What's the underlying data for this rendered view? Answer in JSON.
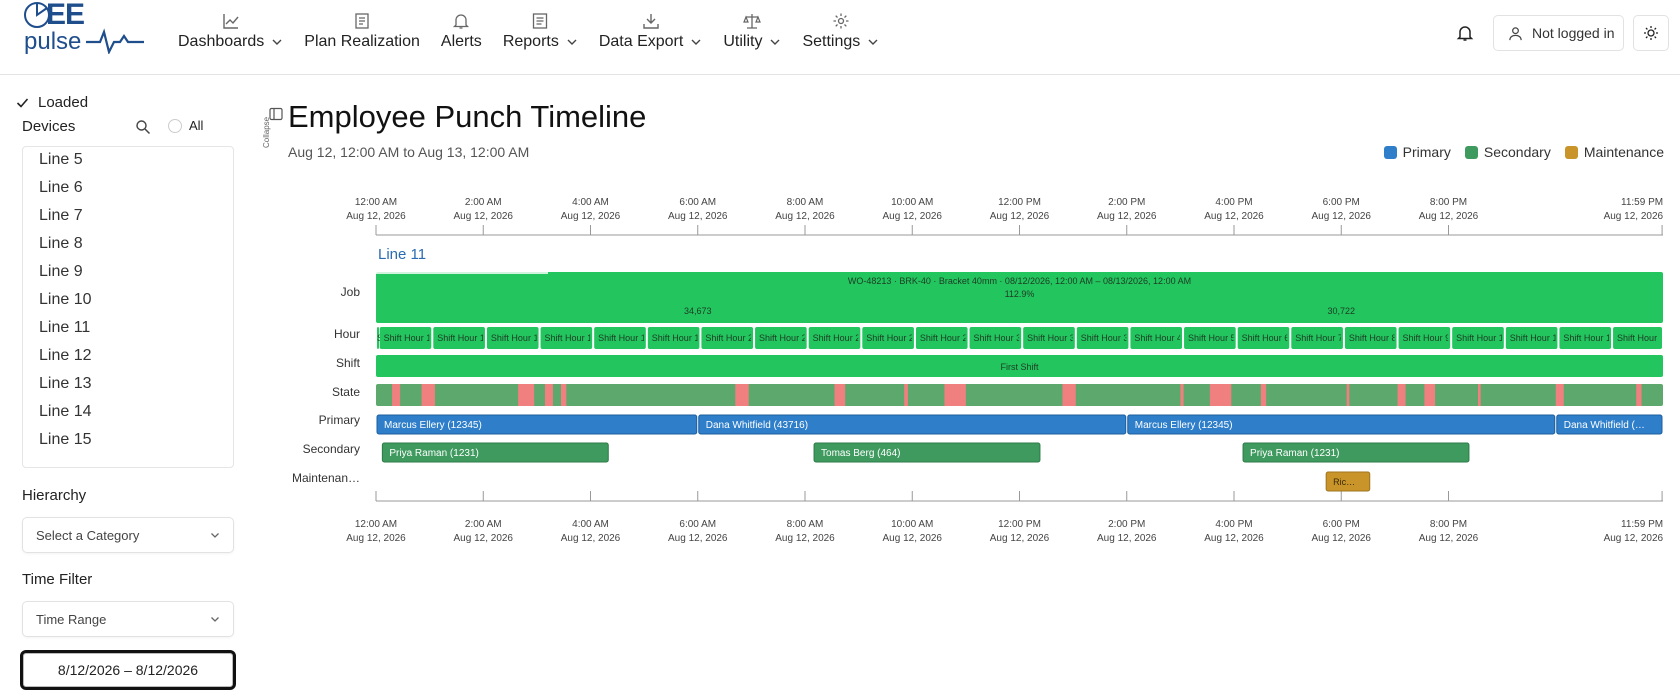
{
  "header": {
    "logo_top": "EE",
    "logo_bottom": "pulse",
    "nav": [
      {
        "label": "Dashboards",
        "icon": "chart-line-icon",
        "dropdown": true
      },
      {
        "label": "Plan Realization",
        "icon": "document-icon",
        "dropdown": false
      },
      {
        "label": "Alerts",
        "icon": "bell-icon",
        "dropdown": false
      },
      {
        "label": "Reports",
        "icon": "report-icon",
        "dropdown": true
      },
      {
        "label": "Data Export",
        "icon": "download-icon",
        "dropdown": true
      },
      {
        "label": "Utility",
        "icon": "scale-icon",
        "dropdown": true
      },
      {
        "label": "Settings",
        "icon": "gear-icon",
        "dropdown": true
      }
    ],
    "login_label": "Not logged in"
  },
  "sidebar": {
    "loaded_label": "Loaded",
    "devices_label": "Devices",
    "all_label": "All",
    "devices": [
      "Line 5",
      "Line 6",
      "Line 7",
      "Line 8",
      "Line 9",
      "Line 10",
      "Line 11",
      "Line 12",
      "Line 13",
      "Line 14",
      "Line 15"
    ],
    "hierarchy_label": "Hierarchy",
    "hierarchy_placeholder": "Select a Category",
    "time_filter_label": "Time Filter",
    "time_filter_value": "Time Range",
    "date_range": "8/12/2026 – 8/12/2026"
  },
  "main": {
    "collapse_label": "Collapse",
    "title": "Employee Punch Timeline",
    "range": "Aug 12, 12:00 AM to Aug 13, 12:00 AM",
    "legend": [
      {
        "label": "Primary",
        "color": "#2e7ec9"
      },
      {
        "label": "Secondary",
        "color": "#3f9a5f"
      },
      {
        "label": "Maintenance",
        "color": "#c9952a"
      }
    ]
  },
  "chart_data": {
    "type": "timeline",
    "device": "Line 11",
    "x_range_hours": [
      0,
      24
    ],
    "axis_ticks": [
      {
        "hour": 0,
        "time": "12:00 AM",
        "date": "Aug 12, 2026"
      },
      {
        "hour": 2,
        "time": "2:00 AM",
        "date": "Aug 12, 2026"
      },
      {
        "hour": 4,
        "time": "4:00 AM",
        "date": "Aug 12, 2026"
      },
      {
        "hour": 6,
        "time": "6:00 AM",
        "date": "Aug 12, 2026"
      },
      {
        "hour": 8,
        "time": "8:00 AM",
        "date": "Aug 12, 2026"
      },
      {
        "hour": 10,
        "time": "10:00 AM",
        "date": "Aug 12, 2026"
      },
      {
        "hour": 12,
        "time": "12:00 PM",
        "date": "Aug 12, 2026"
      },
      {
        "hour": 14,
        "time": "2:00 PM",
        "date": "Aug 12, 2026"
      },
      {
        "hour": 16,
        "time": "4:00 PM",
        "date": "Aug 12, 2026"
      },
      {
        "hour": 18,
        "time": "6:00 PM",
        "date": "Aug 12, 2026"
      },
      {
        "hour": 20,
        "time": "8:00 PM",
        "date": "Aug 12, 2026"
      },
      {
        "hour": 23.983,
        "time": "11:59 PM",
        "date": "Aug 12, 2026"
      }
    ],
    "rows": [
      "Job",
      "Hour",
      "Shift",
      "State",
      "Primary",
      "Secondary",
      "Maintenan…"
    ],
    "job": {
      "label": "WO-48213 · BRK-40 · Bracket 40mm · 08/12/2026, 12:00 AM – 08/13/2026, 12:00 AM",
      "percent": "112.9%",
      "start": 0,
      "end": 24,
      "counts": [
        {
          "hour": 6,
          "value": "34,673"
        },
        {
          "hour": 18,
          "value": "30,722"
        }
      ]
    },
    "hour_blocks": [
      {
        "start": 0.0,
        "end": 0.05,
        "label": "S"
      },
      {
        "start": 0.05,
        "end": 1.05,
        "label": "Shift Hour 1"
      },
      {
        "start": 1.05,
        "end": 2.05,
        "label": "Shift Hour 1"
      },
      {
        "start": 2.05,
        "end": 3.05,
        "label": "Shift Hour 1"
      },
      {
        "start": 3.05,
        "end": 4.05,
        "label": "Shift Hour 1"
      },
      {
        "start": 4.05,
        "end": 5.05,
        "label": "Shift Hour 1"
      },
      {
        "start": 5.05,
        "end": 6.05,
        "label": "Shift Hour 1"
      },
      {
        "start": 6.05,
        "end": 7.05,
        "label": "Shift Hour 2"
      },
      {
        "start": 7.05,
        "end": 8.05,
        "label": "Shift Hour 2"
      },
      {
        "start": 8.05,
        "end": 9.05,
        "label": "Shift Hour 2"
      },
      {
        "start": 9.05,
        "end": 10.05,
        "label": "Shift Hour 2"
      },
      {
        "start": 10.05,
        "end": 11.05,
        "label": "Shift Hour 2"
      },
      {
        "start": 11.05,
        "end": 12.05,
        "label": "Shift Hour 3"
      },
      {
        "start": 12.05,
        "end": 13.05,
        "label": "Shift Hour 3"
      },
      {
        "start": 13.05,
        "end": 14.05,
        "label": "Shift Hour 3"
      },
      {
        "start": 14.05,
        "end": 15.05,
        "label": "Shift Hour 4"
      },
      {
        "start": 15.05,
        "end": 16.05,
        "label": "Shift Hour 5"
      },
      {
        "start": 16.05,
        "end": 17.05,
        "label": "Shift Hour 6"
      },
      {
        "start": 17.05,
        "end": 18.05,
        "label": "Shift Hour 7"
      },
      {
        "start": 18.05,
        "end": 19.05,
        "label": "Shift Hour 8"
      },
      {
        "start": 19.05,
        "end": 20.05,
        "label": "Shift Hour 9"
      },
      {
        "start": 20.05,
        "end": 21.05,
        "label": "Shift Hour 1"
      },
      {
        "start": 21.05,
        "end": 22.05,
        "label": "Shift Hour 1"
      },
      {
        "start": 22.05,
        "end": 23.05,
        "label": "Shift Hour 1"
      },
      {
        "start": 23.05,
        "end": 24.0,
        "label": "Shift Hour 1"
      }
    ],
    "shift": {
      "label": "First Shift",
      "start": 0,
      "end": 24
    },
    "state_faults": [
      [
        0.3,
        0.45
      ],
      [
        0.85,
        1.1
      ],
      [
        2.65,
        2.95
      ],
      [
        3.15,
        3.3
      ],
      [
        3.45,
        3.55
      ],
      [
        6.7,
        6.95
      ],
      [
        8.55,
        8.75
      ],
      [
        9.85,
        9.92
      ],
      [
        10.6,
        11.0
      ],
      [
        12.8,
        13.05
      ],
      [
        15.0,
        15.06
      ],
      [
        15.55,
        15.95
      ],
      [
        16.5,
        16.6
      ],
      [
        18.1,
        18.15
      ],
      [
        19.05,
        19.2
      ],
      [
        19.55,
        19.75
      ],
      [
        20.55,
        20.6
      ],
      [
        22.0,
        22.15
      ],
      [
        23.5,
        23.6
      ]
    ],
    "primary": [
      {
        "start": 0.0,
        "end": 6.0,
        "label": "Marcus Ellery (12345)"
      },
      {
        "start": 6.0,
        "end": 14.0,
        "label": "Dana Whitfield (43716)"
      },
      {
        "start": 14.0,
        "end": 22.0,
        "label": "Marcus Ellery (12345)"
      },
      {
        "start": 22.0,
        "end": 24.0,
        "label": "Dana Whitfield (…"
      }
    ],
    "secondary": [
      {
        "start": 0.1,
        "end": 4.35,
        "label": "Priya Raman (1231)"
      },
      {
        "start": 8.15,
        "end": 12.4,
        "label": "Tomas Berg (464)"
      },
      {
        "start": 16.15,
        "end": 20.4,
        "label": "Priya Raman (1231)"
      }
    ],
    "maintenance": [
      {
        "start": 17.7,
        "end": 18.55,
        "label": "Ric…"
      }
    ]
  }
}
